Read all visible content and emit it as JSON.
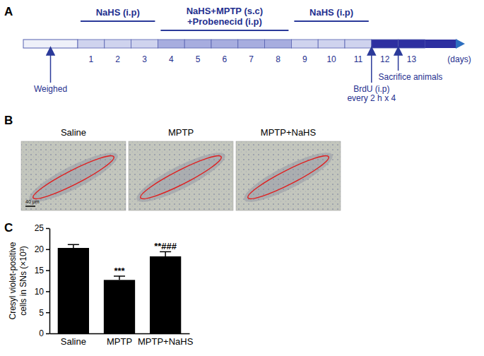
{
  "timeline": {
    "panel_label": "A",
    "days": [
      1,
      2,
      3,
      4,
      5,
      6,
      7,
      8,
      9,
      10,
      11,
      12,
      13
    ],
    "unit": "(days)",
    "phases": [
      {
        "label": [
          "NaHS (i.p)"
        ],
        "start": 1,
        "end": 3
      },
      {
        "label": [
          "NaHS+MPTP (s.c)",
          "+Probenecid (i.p)"
        ],
        "start": 4,
        "end": 8
      },
      {
        "label": [
          "NaHS (i.p)"
        ],
        "start": 9,
        "end": 11
      }
    ],
    "events": [
      {
        "label": [
          "Weighed"
        ]
      },
      {
        "label": [
          "BrdU (i.p)",
          "every 2 h x 4"
        ],
        "day": 12
      },
      {
        "label": [
          "Sacrifice animals"
        ],
        "day": 13
      }
    ]
  },
  "micrographs": {
    "panel_label": "B",
    "titles": [
      "Saline",
      "MPTP",
      "MPTP+NaHS"
    ],
    "scale_bar": "40 μm"
  },
  "chart_data": {
    "type": "bar",
    "panel_label": "C",
    "categories": [
      "Saline",
      "MPTP",
      "MPTP+NaHS"
    ],
    "values": [
      20.3,
      12.7,
      18.3
    ],
    "errors": [
      0.8,
      0.9,
      1.1
    ],
    "annotations": [
      null,
      "***",
      "**###"
    ],
    "color": "#000000",
    "y_label": [
      "Cresyl violet-positive",
      "cells in SNs (×10³)"
    ],
    "ylim": [
      0,
      25
    ],
    "yticks": [
      0,
      5,
      10,
      15,
      20,
      25
    ]
  }
}
